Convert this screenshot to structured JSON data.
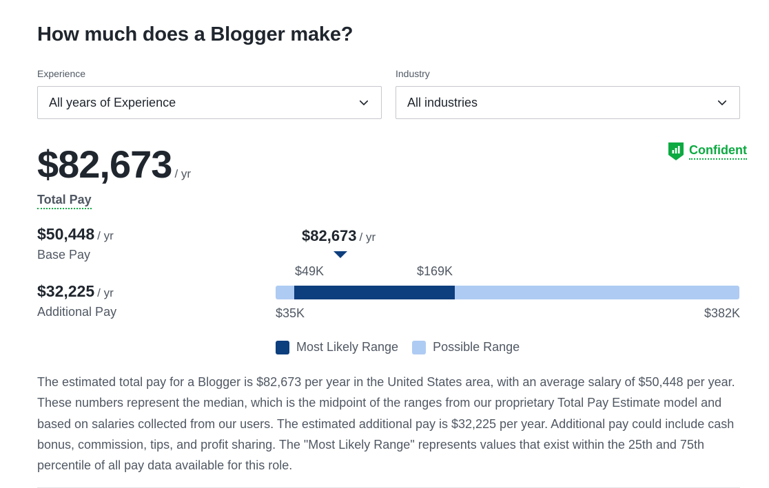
{
  "title": "How much does a Blogger make?",
  "filters": {
    "experience": {
      "label": "Experience",
      "value": "All years of Experience",
      "icon": "chevron-down-icon"
    },
    "industry": {
      "label": "Industry",
      "value": "All industries",
      "icon": "chevron-down-icon"
    }
  },
  "total_pay": {
    "amount": "$82,673",
    "unit": "/ yr",
    "label": "Total Pay"
  },
  "confidence": {
    "label": "Confident",
    "icon": "bar-chart-shield-icon",
    "color": "#0caa41"
  },
  "base_pay": {
    "amount": "$50,448",
    "unit": "/ yr",
    "label": "Base Pay"
  },
  "additional_pay": {
    "amount": "$32,225",
    "unit": "/ yr",
    "label": "Additional Pay"
  },
  "chart_data": {
    "type": "bar",
    "median": {
      "label": "$82,673",
      "unit": "/ yr",
      "value": 82673
    },
    "range": {
      "min": 35000,
      "max": 382000,
      "min_label": "$35K",
      "max_label": "$382K"
    },
    "likely_range": {
      "low": 49000,
      "high": 169000,
      "low_label": "$49K",
      "high_label": "$169K"
    },
    "legend": [
      {
        "label": "Most Likely Range",
        "color": "#0d3e7d"
      },
      {
        "label": "Possible Range",
        "color": "#aecbf3"
      }
    ]
  },
  "description": "The estimated total pay for a Blogger is $82,673 per year in the United States area, with an average salary of $50,448 per year. These numbers represent the median, which is the midpoint of the ranges from our proprietary Total Pay Estimate model and based on salaries collected from our users. The estimated additional pay is $32,225 per year. Additional pay could include cash bonus, commission, tips, and profit sharing. The \"Most Likely Range\" represents values that exist within the 25th and 75th percentile of all pay data available for this role."
}
